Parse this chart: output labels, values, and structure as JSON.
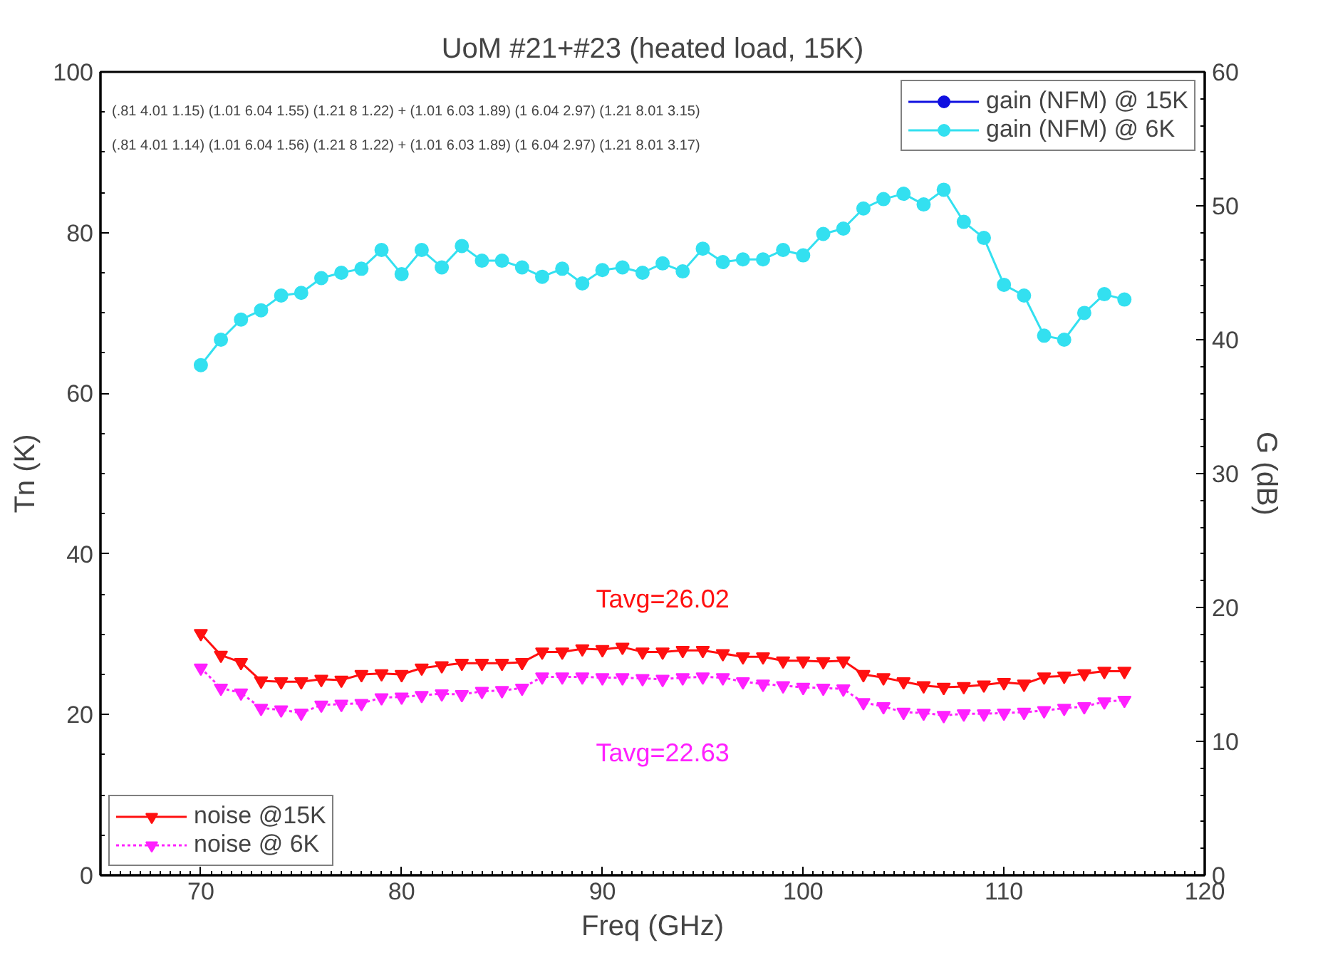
{
  "chart_data": {
    "type": "line",
    "title": "UoM #21+#23 (heated load, 15K)",
    "xlabel": "Freq (GHz)",
    "ylabel": "Tn (K)",
    "y2label": "G (dB)",
    "x": [
      70,
      71,
      72,
      73,
      74,
      75,
      76,
      77,
      78,
      79,
      80,
      81,
      82,
      83,
      84,
      85,
      86,
      87,
      88,
      89,
      90,
      91,
      92,
      93,
      94,
      95,
      96,
      97,
      98,
      99,
      100,
      101,
      102,
      103,
      104,
      105,
      106,
      107,
      108,
      109,
      110,
      111,
      112,
      113,
      114,
      115,
      116
    ],
    "series": [
      {
        "name": "gain (NFM) @ 15K",
        "color": "#1010e0",
        "axis": "y2",
        "marker": "circle",
        "values": [
          null,
          null,
          null,
          null,
          null,
          null,
          null,
          null,
          null,
          null,
          null,
          null,
          null,
          null,
          null,
          null,
          null,
          null,
          null,
          null,
          null,
          null,
          null,
          null,
          null,
          null,
          null,
          null,
          null,
          null,
          null,
          null,
          null,
          null,
          null,
          null,
          null,
          null,
          null,
          null,
          null,
          null,
          null,
          null,
          null,
          null,
          null
        ]
      },
      {
        "name": "gain (NFM) @ 6K",
        "color": "#33e0f0",
        "axis": "y2",
        "marker": "circle",
        "values": [
          38.1,
          40.0,
          41.5,
          42.2,
          43.3,
          43.5,
          44.6,
          45.0,
          45.3,
          46.7,
          44.9,
          46.7,
          45.4,
          47.0,
          45.9,
          45.9,
          45.4,
          44.7,
          45.3,
          44.2,
          45.2,
          45.4,
          45.0,
          45.7,
          45.1,
          46.8,
          45.8,
          46.0,
          46.0,
          46.7,
          46.3,
          47.9,
          48.3,
          49.8,
          50.5,
          50.9,
          50.1,
          51.2,
          48.8,
          47.6,
          44.1,
          43.3,
          40.3,
          40.0,
          42.0,
          43.4,
          43.0
        ]
      },
      {
        "name": "noise @15K",
        "color": "#ff1010",
        "axis": "y",
        "marker": "triangle",
        "values": [
          30.1,
          27.4,
          26.5,
          24.2,
          24.1,
          24.1,
          24.4,
          24.3,
          25.0,
          25.1,
          25.0,
          25.8,
          26.1,
          26.4,
          26.4,
          26.4,
          26.5,
          27.8,
          27.8,
          28.2,
          28.1,
          28.4,
          27.8,
          27.8,
          28.0,
          28.0,
          27.6,
          27.2,
          27.2,
          26.7,
          26.7,
          26.6,
          26.7,
          25.0,
          24.6,
          24.1,
          23.6,
          23.4,
          23.5,
          23.7,
          24.0,
          23.8,
          24.7,
          24.8,
          25.1,
          25.4,
          25.4
        ]
      },
      {
        "name": "noise @ 6K",
        "color": "#ff20ff",
        "axis": "y",
        "marker": "triangle",
        "line_style": "dotted",
        "values": [
          25.8,
          23.3,
          22.7,
          20.8,
          20.6,
          20.2,
          21.2,
          21.3,
          21.4,
          22.1,
          22.2,
          22.4,
          22.6,
          22.5,
          22.9,
          23.0,
          23.3,
          24.7,
          24.7,
          24.7,
          24.6,
          24.6,
          24.5,
          24.4,
          24.6,
          24.7,
          24.6,
          24.1,
          23.8,
          23.6,
          23.4,
          23.3,
          23.2,
          21.5,
          21.0,
          20.3,
          20.2,
          19.9,
          20.1,
          20.1,
          20.2,
          20.3,
          20.5,
          20.8,
          21.0,
          21.6,
          21.8
        ]
      }
    ],
    "annotations": [
      "Tavg=26.02",
      "Tavg=22.63",
      "(.81 4.01 1.15) (1.01 6.04 1.55) (1.21 8 1.22) + (1.01 6.03 1.89) (1 6.04 2.97) (1.21 8.01 3.15)",
      "(.81 4.01 1.14) (1.01 6.04 1.56) (1.21 8 1.22) + (1.01 6.03 1.89) (1 6.04 2.97) (1.21 8.01 3.17)"
    ],
    "xlim": [
      65,
      120
    ],
    "xticks": [
      70,
      80,
      90,
      100,
      110,
      120
    ],
    "ylim": [
      0,
      100
    ],
    "yticks": [
      0,
      20,
      40,
      60,
      80,
      100
    ],
    "y2lim": [
      0,
      60
    ],
    "y2ticks": [
      0,
      10,
      20,
      30,
      40,
      50,
      60
    ],
    "legend": "top right",
    "grid": false
  }
}
